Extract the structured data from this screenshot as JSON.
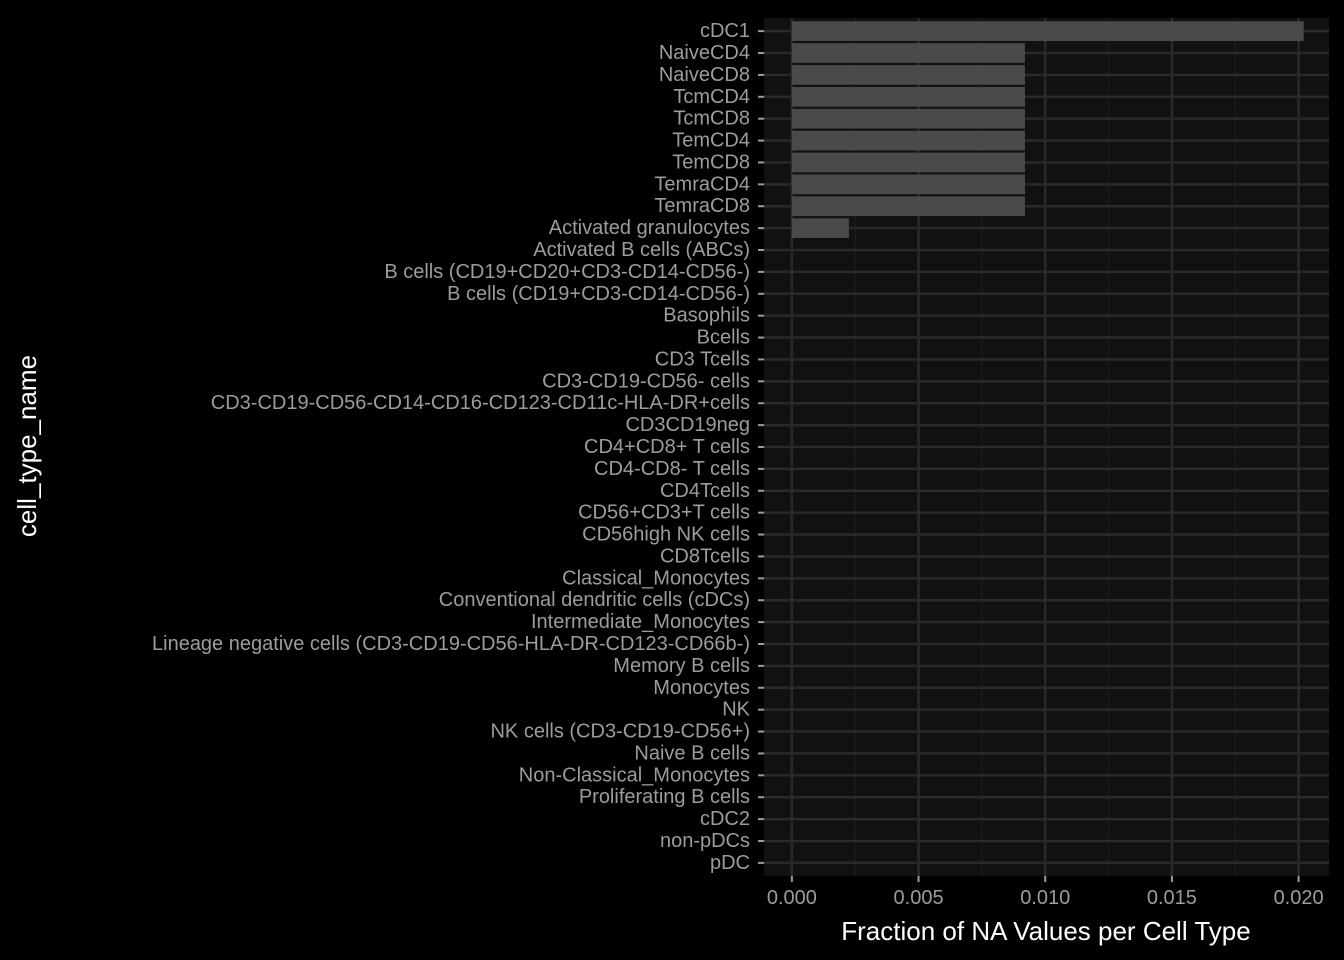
{
  "chart_data": {
    "type": "bar",
    "orientation": "horizontal",
    "xlabel": "Fraction of NA Values per Cell Type",
    "ylabel": "cell_type_name",
    "xlim": [
      -0.0011,
      0.0212
    ],
    "xticks": [
      0.0,
      0.005,
      0.01,
      0.015,
      0.02
    ],
    "xtick_labels": [
      "0.000",
      "0.005",
      "0.010",
      "0.015",
      "0.020"
    ],
    "grid": true,
    "colors": {
      "background": "#000000",
      "panel": "#111111",
      "grid_major": "#2a2a2a",
      "grid_minor": "#1c1c1c",
      "bar": "#4a4a4a",
      "tick_text": "#9c9c9c",
      "title_text": "#ffffff"
    },
    "categories": [
      "cDC1",
      "NaiveCD4",
      "NaiveCD8",
      "TcmCD4",
      "TcmCD8",
      "TemCD4",
      "TemCD8",
      "TemraCD4",
      "TemraCD8",
      "Activated granulocytes",
      "Activated B cells (ABCs)",
      "B cells (CD19+CD20+CD3-CD14-CD56-)",
      "B cells (CD19+CD3-CD14-CD56-)",
      "Basophils",
      "Bcells",
      "CD3 Tcells",
      "CD3-CD19-CD56- cells",
      "CD3-CD19-CD56-CD14-CD16-CD123-CD11c-HLA-DR+cells",
      "CD3CD19neg",
      "CD4+CD8+ T cells",
      "CD4-CD8- T cells",
      "CD4Tcells",
      "CD56+CD3+T cells",
      "CD56high NK cells",
      "CD8Tcells",
      "Classical_Monocytes",
      "Conventional dendritic cells (cDCs)",
      "Intermediate_Monocytes",
      "Lineage negative cells (CD3-CD19-CD56-HLA-DR-CD123-CD66b-)",
      "Memory B cells",
      "Monocytes",
      "NK",
      "NK cells (CD3-CD19-CD56+)",
      "Naive B cells",
      "Non-Classical_Monocytes",
      "Proliferating B cells",
      "cDC2",
      "non-pDCs",
      "pDC"
    ],
    "values": [
      0.0202,
      0.0092,
      0.0092,
      0.0092,
      0.0092,
      0.0092,
      0.0092,
      0.0092,
      0.0092,
      0.00225,
      0,
      0,
      0,
      0,
      0,
      0,
      0,
      0,
      0,
      0,
      0,
      0,
      0,
      0,
      0,
      0,
      0,
      0,
      0,
      0,
      0,
      0,
      0,
      0,
      0,
      0,
      0,
      0,
      0
    ]
  }
}
